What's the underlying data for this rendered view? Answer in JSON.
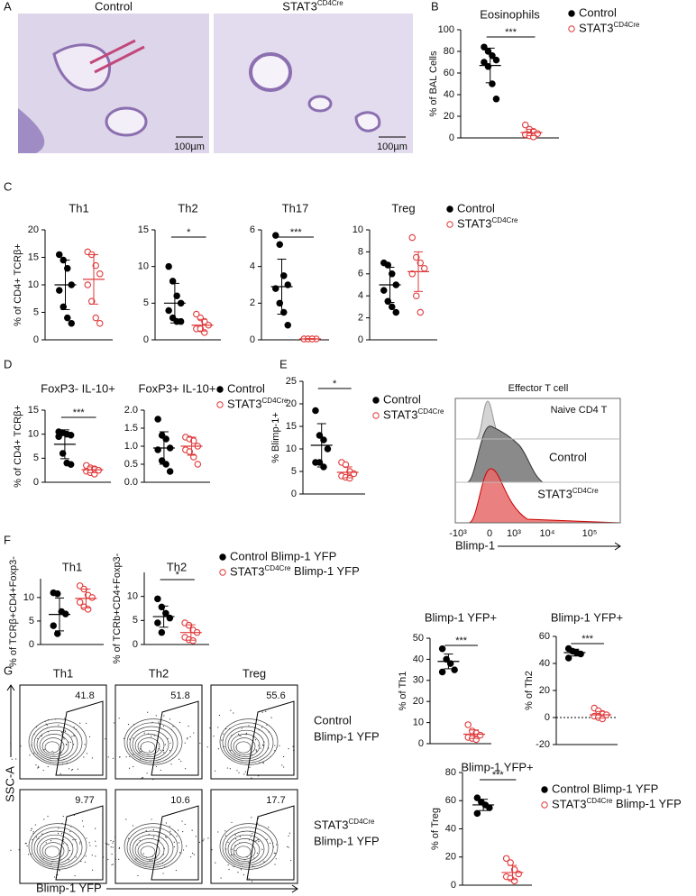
{
  "figure": {
    "panel_letters": [
      "A",
      "B",
      "C",
      "D",
      "E",
      "F",
      "G"
    ],
    "micrographs": {
      "labels": [
        "Control",
        "STAT3CD4Cre"
      ],
      "scale_bars": [
        "100µm",
        "100µm"
      ]
    },
    "histogram": {
      "title": "Effector T cell",
      "rows": [
        "Naive CD4 T",
        "Control",
        "STAT3CD4Cre"
      ],
      "x_label": "Blimp-1",
      "x_ticks": [
        "-10³",
        "0",
        "10³",
        "10⁴",
        "10⁵"
      ]
    },
    "flow": {
      "columns": [
        "Th1",
        "Th2",
        "Treg"
      ],
      "y_label": "SSC-A",
      "x_label": "Blimp-1 YFP",
      "rows": [
        {
          "label": [
            "Control",
            "Blimp-1 YFP"
          ],
          "gates": [
            "41.8",
            "51.8",
            "55.6"
          ]
        },
        {
          "label": [
            "STAT3CD4Cre",
            "Blimp-1 YFP"
          ],
          "gates": [
            "9.77",
            "10.6",
            "17.7"
          ]
        }
      ]
    }
  },
  "chart_data": [
    {
      "type": "dot",
      "title": "Eosinophils",
      "y_label": "% of BAL Cells",
      "ylim": [
        0,
        100
      ],
      "yticks": [
        0,
        20,
        40,
        60,
        80,
        100
      ],
      "annotation": "***",
      "series": [
        {
          "name": "Control",
          "color": "#000000",
          "marker": "filled",
          "values": [
            84,
            80,
            76,
            72,
            70,
            66,
            50,
            36
          ],
          "mean": 67,
          "sd": 16
        },
        {
          "name": "STAT3CD4Cre",
          "color": "#e0393a",
          "marker": "open",
          "values": [
            12,
            8,
            6,
            4,
            3,
            2,
            1
          ],
          "mean": 5,
          "sd": 3
        }
      ]
    },
    {
      "type": "dot",
      "title": "Th1",
      "y_label": "% of CD4+ TCRβ+",
      "ylim": [
        0,
        20
      ],
      "yticks": [
        0,
        5,
        10,
        15,
        20
      ],
      "series": [
        {
          "color": "#000000",
          "marker": "filled",
          "values": [
            15.5,
            14.5,
            13,
            10,
            9,
            6,
            4,
            3
          ],
          "mean": 10,
          "sd": 4.5
        },
        {
          "color": "#e0393a",
          "marker": "open",
          "values": [
            16,
            15.5,
            13.5,
            12,
            10,
            7,
            4,
            3
          ],
          "mean": 11,
          "sd": 4.5
        }
      ]
    },
    {
      "type": "dot",
      "title": "Th2",
      "ylim": [
        0,
        15
      ],
      "yticks": [
        0,
        5,
        10,
        15
      ],
      "annotation": "*",
      "series": [
        {
          "color": "#000000",
          "marker": "filled",
          "values": [
            10,
            8,
            6,
            5,
            4,
            3,
            2.5,
            2.5
          ],
          "mean": 5,
          "sd": 2.7
        },
        {
          "color": "#e0393a",
          "marker": "open",
          "values": [
            3.5,
            3,
            2.5,
            2,
            1.5,
            1.5,
            1
          ],
          "mean": 2,
          "sd": 0.8
        }
      ]
    },
    {
      "type": "dot",
      "title": "Th17",
      "ylim": [
        0,
        6
      ],
      "yticks": [
        0,
        2,
        4,
        6
      ],
      "annotation": "***",
      "series": [
        {
          "color": "#000000",
          "marker": "filled",
          "values": [
            5.7,
            5.2,
            3.5,
            3,
            2.8,
            2,
            1.5,
            0.8
          ],
          "mean": 2.9,
          "sd": 1.5
        },
        {
          "color": "#e0393a",
          "marker": "open",
          "values": [
            0.05,
            0.05,
            0.05,
            0.05,
            0.05,
            0.05,
            0.05
          ],
          "mean": 0.05,
          "sd": 0.02
        }
      ]
    },
    {
      "type": "dot",
      "title": "Treg",
      "ylim": [
        0,
        10
      ],
      "yticks": [
        0,
        2,
        4,
        6,
        8,
        10
      ],
      "series": [
        {
          "name": "Control",
          "color": "#000000",
          "marker": "filled",
          "values": [
            7,
            6.8,
            6,
            5,
            4.5,
            3.5,
            3,
            2.5
          ],
          "mean": 5,
          "sd": 1.6
        },
        {
          "name": "STAT3CD4Cre",
          "color": "#e0393a",
          "marker": "open",
          "values": [
            9.3,
            7.5,
            7,
            6.5,
            6,
            4,
            2.5
          ],
          "mean": 6.2,
          "sd": 1.8
        }
      ]
    },
    {
      "type": "dot",
      "title": "FoxP3- IL-10+",
      "y_label": "% of CD4+ TCRβ+",
      "ylim": [
        0,
        15
      ],
      "yticks": [
        0,
        5,
        10,
        15
      ],
      "annotation": "***",
      "series": [
        {
          "color": "#000000",
          "marker": "filled",
          "values": [
            10.5,
            10.3,
            10,
            9.8,
            9.5,
            6,
            4,
            3.7
          ],
          "mean": 7.9,
          "sd": 3
        },
        {
          "color": "#e0393a",
          "marker": "open",
          "values": [
            3.5,
            3,
            2.8,
            2.5,
            2.3,
            2,
            1.7
          ],
          "mean": 2.6,
          "sd": 0.6
        }
      ]
    },
    {
      "type": "dot",
      "title": "FoxP3+ IL-10+",
      "ylim": [
        0,
        2
      ],
      "yticks": [
        {
          "value": 0,
          "label": "0.0"
        },
        0.5,
        {
          "value": 1,
          "label": "1.0"
        },
        1.5,
        {
          "value": 2,
          "label": "2.0"
        }
      ],
      "series": [
        {
          "name": "Control",
          "color": "#000000",
          "marker": "filled",
          "values": [
            1.75,
            1.3,
            1.2,
            0.95,
            0.9,
            0.6,
            0.5,
            0.3
          ],
          "mean": 0.95,
          "sd": 0.45
        },
        {
          "name": "STAT3CD4Cre",
          "color": "#e0393a",
          "marker": "open",
          "values": [
            1.25,
            1.2,
            1.15,
            1.0,
            0.9,
            0.85,
            0.7,
            0.5
          ],
          "mean": 1.0,
          "sd": 0.25
        }
      ]
    },
    {
      "type": "dot",
      "y_label": "% Blimp-1+",
      "ylim": [
        0,
        25
      ],
      "yticks": [
        0,
        5,
        10,
        15,
        20,
        25
      ],
      "annotation": "*",
      "series": [
        {
          "name": "Control",
          "color": "#000000",
          "marker": "filled",
          "values": [
            18.5,
            13,
            12,
            10,
            7,
            7,
            6
          ],
          "mean": 10.8,
          "sd": 4.8
        },
        {
          "name": "STAT3CD4Cre",
          "color": "#e0393a",
          "marker": "open",
          "values": [
            7,
            6.5,
            5,
            4.5,
            4,
            3.7,
            3.5
          ],
          "mean": 4.8,
          "sd": 1.2
        }
      ]
    },
    {
      "type": "dot",
      "title": "Th1",
      "y_label": "% of TCRβ+CD4+Foxp3-",
      "ylim": [
        0,
        14
      ],
      "yticks": [
        0,
        5,
        10
      ],
      "series": [
        {
          "color": "#000000",
          "marker": "filled",
          "values": [
            11,
            10.8,
            7,
            6.5,
            4,
            2.3
          ],
          "mean": 6.4,
          "sd": 3.5
        },
        {
          "color": "#e0393a",
          "marker": "open",
          "values": [
            12.5,
            11.8,
            10.5,
            10,
            9,
            8,
            7.5
          ],
          "mean": 9.8,
          "sd": 2
        }
      ]
    },
    {
      "type": "dot",
      "title": "Th2",
      "y_label": "% of TCRb+CD4+Foxp3-",
      "ylim": [
        0,
        15
      ],
      "yticks": [
        0,
        5,
        10
      ],
      "annotation": "*",
      "series": [
        {
          "name": "Control Blimp-1 YFP",
          "color": "#000000",
          "marker": "filled",
          "values": [
            9.5,
            7.8,
            6.5,
            5.5,
            4.5,
            2.5
          ],
          "mean": 5.8,
          "sd": 2.2
        },
        {
          "name": "STAT3CD4Cre Blimp-1 YFP",
          "color": "#e0393a",
          "marker": "open",
          "values": [
            4.5,
            4,
            3,
            2.5,
            1.5,
            1,
            0.8
          ],
          "mean": 2.5,
          "sd": 1.6
        }
      ]
    },
    {
      "type": "dot",
      "title": "Blimp-1 YFP+",
      "y_label": "% of Th1",
      "ylim": [
        0,
        50
      ],
      "yticks": [
        0,
        10,
        20,
        30,
        40,
        50
      ],
      "annotation": "***",
      "series": [
        {
          "color": "#000000",
          "marker": "filled",
          "values": [
            45,
            40,
            38,
            35,
            34
          ],
          "mean": 39,
          "sd": 3.5
        },
        {
          "color": "#e0393a",
          "marker": "open",
          "values": [
            9,
            6,
            5,
            4,
            3,
            2.5,
            2
          ],
          "mean": 4.5,
          "sd": 2
        }
      ]
    },
    {
      "type": "dot",
      "title": "Blimp-1 YFP+",
      "y_label": "% of Th2",
      "ylim": [
        -20,
        60
      ],
      "yticks": [
        -20,
        0,
        20,
        40,
        60
      ],
      "annotation": "***",
      "zero_line": true,
      "series": [
        {
          "color": "#000000",
          "marker": "filled",
          "values": [
            51,
            49,
            48,
            47,
            44
          ],
          "mean": 48,
          "sd": 2.5
        },
        {
          "color": "#e0393a",
          "marker": "open",
          "values": [
            7,
            5,
            3,
            2,
            1,
            0,
            -1
          ],
          "mean": 2,
          "sd": 2.5
        }
      ]
    },
    {
      "type": "dot",
      "title": "Blimp-1 YFP+",
      "y_label": "% of Treg",
      "ylim": [
        0,
        80
      ],
      "yticks": [
        0,
        20,
        40,
        60,
        80
      ],
      "annotation": "***",
      "series": [
        {
          "name": "Control Blimp-1 YFP",
          "color": "#000000",
          "marker": "filled",
          "values": [
            62,
            59,
            57,
            55,
            51
          ],
          "mean": 57,
          "sd": 4
        },
        {
          "name": "STAT3CD4Cre Blimp-1 YFP",
          "color": "#e0393a",
          "marker": "open",
          "values": [
            19,
            16,
            11,
            8,
            6,
            5,
            3
          ],
          "mean": 9,
          "sd": 5
        }
      ]
    }
  ]
}
